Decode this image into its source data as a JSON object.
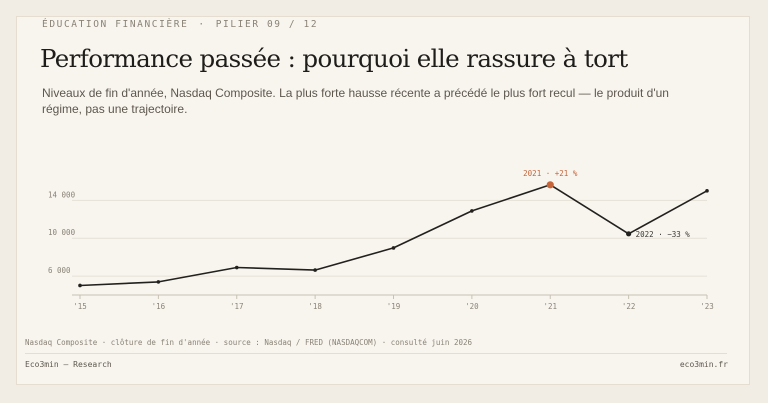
{
  "header": {
    "eyebrow_section": "ÉDUCATION FINANCIÈRE",
    "eyebrow_separator": "·",
    "eyebrow_pillar": "PILIER 09 / 12",
    "title": "Performance passée : pourquoi elle rassure à tort",
    "subtitle": "Niveaux de fin d'année, Nasdaq Composite. La plus forte hausse récente a précédé le plus fort recul — le produit d'un régime, pas une trajectoire."
  },
  "chart_data": {
    "type": "line",
    "categories": [
      "'15",
      "'16",
      "'17",
      "'18",
      "'19",
      "'20",
      "'21",
      "'22",
      "'23"
    ],
    "x": [
      2015,
      2016,
      2017,
      2018,
      2019,
      2020,
      2021,
      2022,
      2023
    ],
    "values": [
      5007,
      5383,
      6903,
      6635,
      8973,
      12888,
      15645,
      10466,
      15011
    ],
    "yticks": [
      6000,
      10000,
      14000
    ],
    "ytick_labels": [
      "6 000",
      "10 000",
      "14 000"
    ],
    "ylim": [
      4000,
      17000
    ],
    "grid": true,
    "line_color": "#23211e",
    "highlight_color": "#c4653a",
    "annotations": [
      {
        "year": 2021,
        "text": "2021 · +21 %",
        "color": "#c4653a"
      },
      {
        "year": 2022,
        "text": "2022 · −33 %",
        "color": "#3b3833"
      }
    ]
  },
  "footer": {
    "source": "Nasdaq Composite · clôture de fin d'année · source : Nasdaq / FRED (NASDAQCOM) · consulté juin 2026",
    "brand": "Eco3min — Research",
    "site": "eco3min.fr"
  }
}
